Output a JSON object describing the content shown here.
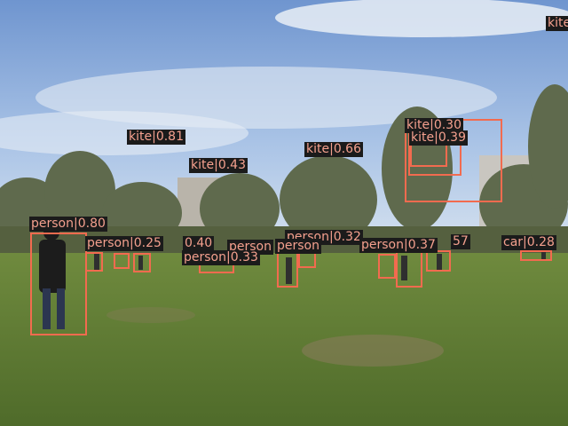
{
  "image": {
    "description_icon": "park-lawn-photo-icon",
    "box_color": "#f26b4f",
    "label_bg": "#1b1b1b",
    "label_text_color": "#f4a08e"
  },
  "detections": [
    {
      "label": "kite|0.81"
    },
    {
      "label": "kite|0.43"
    },
    {
      "label": "kite|0.66"
    },
    {
      "label": "kite|0.30"
    },
    {
      "label": "kite|0.39"
    },
    {
      "label": "kite"
    },
    {
      "label": "person|0.80"
    },
    {
      "label": "person|0.25"
    },
    {
      "label": "0.40"
    },
    {
      "label": "person"
    },
    {
      "label": "person|0.33"
    },
    {
      "label": "person|0.32"
    },
    {
      "label": "person|0.37"
    },
    {
      "label": "person"
    },
    {
      "label": "57"
    },
    {
      "label": "car|0.28"
    }
  ]
}
